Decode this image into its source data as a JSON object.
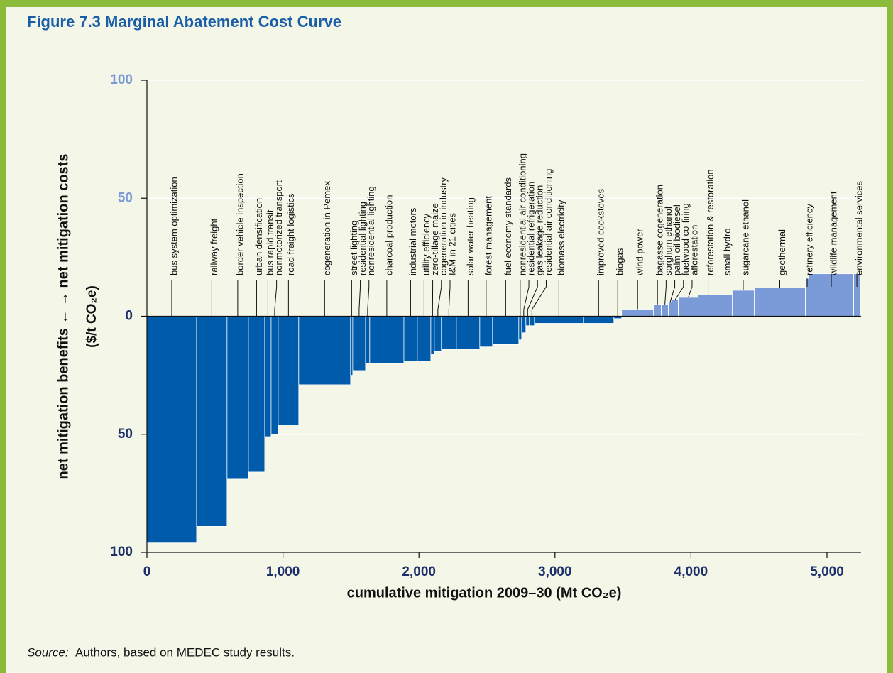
{
  "chart_data": {
    "type": "variable-width-bar",
    "title": "Figure 7.3  Marginal Abatement Cost Curve",
    "y_label": "net mitigation benefits ←     → net mitigation costs",
    "y_unit": "($/t CO₂e)",
    "x_label": "cumulative mitigation 2009–30 (Mt CO₂e)",
    "source_label": "Source:",
    "source_text": "Authors, based on MEDEC study results.",
    "categories": [
      "bus system optimization",
      "railway freight",
      "border vehicle inspection",
      "urban densification",
      "bus rapid transit",
      "nonmotorized transport",
      "road freight logistics",
      "cogeneration in Pemex",
      "street lighting",
      "residential lighting",
      "nonresidential lighting",
      "charcoal production",
      "industrial motors",
      "utility efficiency",
      "zero-tillage maize",
      "cogeneration in industry",
      "I&M in 21 cities",
      "solar water heating",
      "forest management",
      "fuel economy standards",
      "nonresidential air conditioning",
      "residential refrigeration",
      "gas leakage reduction",
      "residential air conditioning",
      "biomass electricity",
      "improved cookstoves",
      "biogas",
      "wind power",
      "bagasse cogeneration",
      "sorghum ethanol",
      "palm oil biodiesel",
      "fuelwood co-firing",
      "afforestation",
      "reforestation & restoration",
      "small hydro",
      "sugarcane ethanol",
      "geothermal",
      "refinery efficiency",
      "wildlife management",
      "environmental services"
    ],
    "values": [
      -96,
      -89,
      -69,
      -66,
      -51,
      -50,
      -46,
      -29,
      -25,
      -23,
      -20,
      -20,
      -19,
      -19,
      -16,
      -15,
      -14,
      -14,
      -13,
      -12,
      -10,
      -7,
      -4,
      -4,
      -3,
      -3,
      -1,
      3,
      5,
      5,
      6,
      7,
      8,
      9,
      9,
      11,
      12,
      16,
      18,
      18
    ],
    "widths": [
      365,
      224,
      157,
      120,
      47,
      52,
      151,
      381,
      16,
      94,
      31,
      251,
      99,
      99,
      26,
      52,
      110,
      172,
      94,
      193,
      21,
      31,
      26,
      37,
      360,
      224,
      57,
      235,
      57,
      52,
      26,
      47,
      146,
      146,
      104,
      162,
      376,
      26,
      329,
      47
    ],
    "negative_color": "#005bab",
    "positive_color": "#7b9bd8",
    "xlim": [
      0,
      5250
    ],
    "xticks": [
      0,
      {
        "value": 1000,
        "label": "1,000"
      },
      {
        "value": 2000,
        "label": "2,000"
      },
      {
        "value": 3000,
        "label": "3,000"
      },
      {
        "value": 4000,
        "label": "4,000"
      },
      {
        "value": 5000,
        "label": "5,000"
      }
    ],
    "ylim": [
      -100,
      100
    ],
    "yticks": [
      100,
      50,
      0,
      {
        "value": -50,
        "label": "50"
      },
      {
        "value": -100,
        "label": "100"
      }
    ],
    "grid": true
  }
}
